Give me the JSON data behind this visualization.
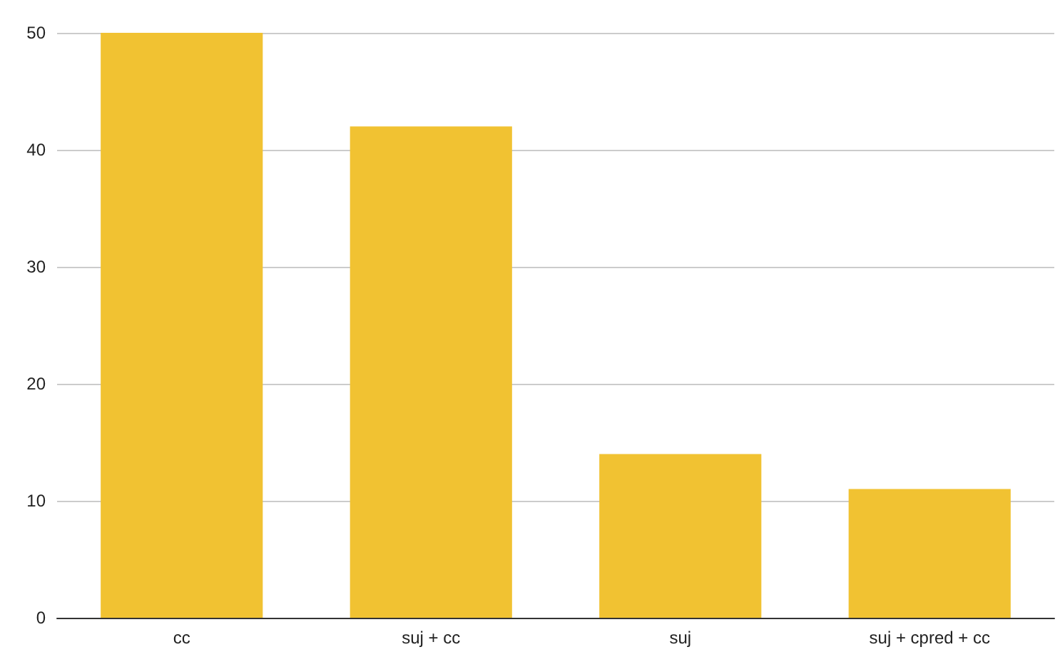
{
  "chart_data": {
    "type": "bar",
    "categories": [
      "cc",
      "suj + cc",
      "suj",
      "suj + cpred + cc"
    ],
    "values": [
      50,
      42,
      14,
      11
    ],
    "color": "#f1c232",
    "ylim": [
      0,
      50
    ],
    "yticks": [
      0,
      10,
      20,
      30,
      40,
      50
    ],
    "grid": "y"
  }
}
